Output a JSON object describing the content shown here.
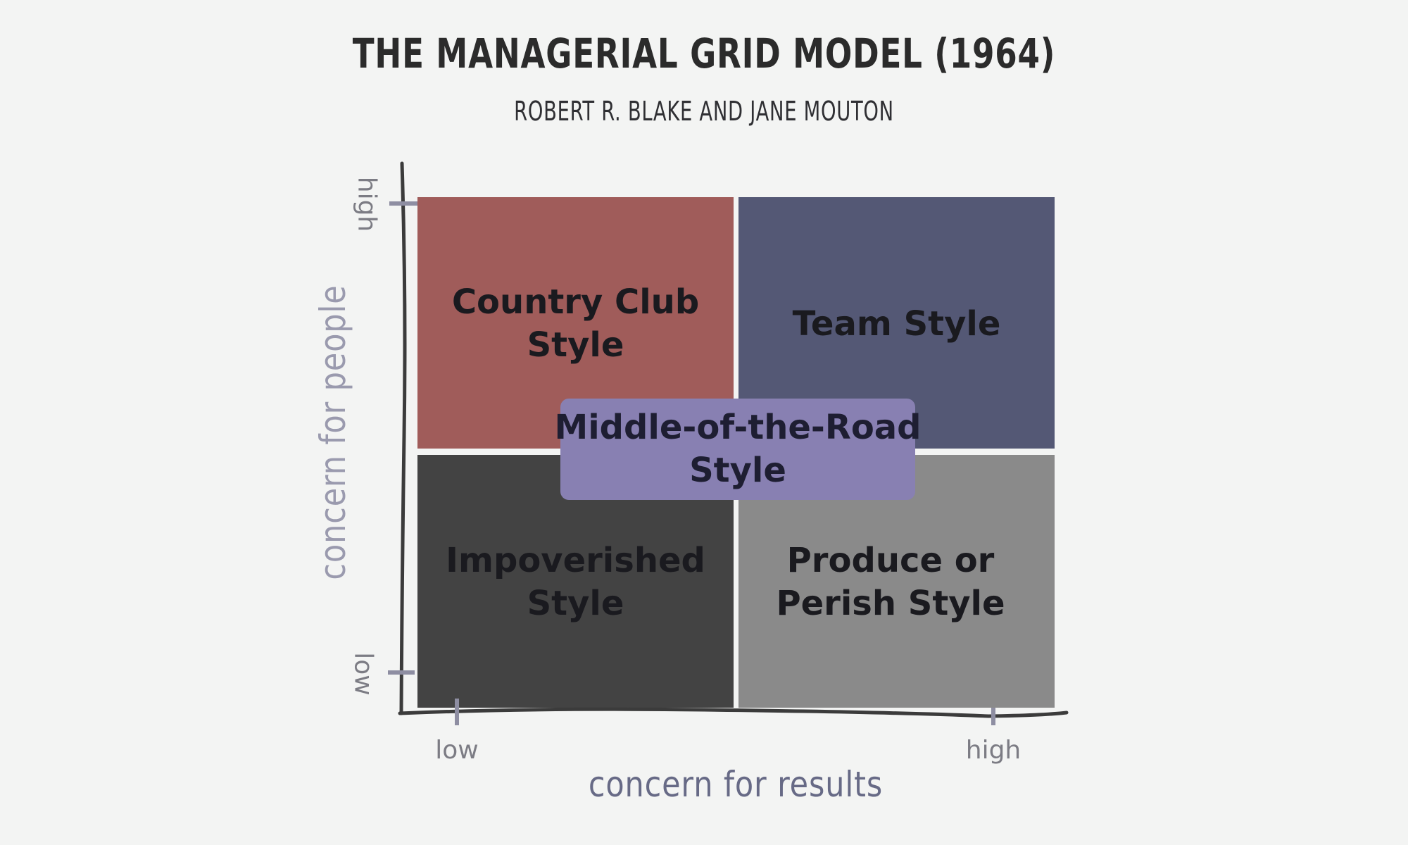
{
  "title": "THE MANAGERIAL GRID MODEL (1964)",
  "subtitle": "ROBERT R. BLAKE AND JANE MOUTON",
  "quadrants": {
    "top_left": {
      "label": "Country Club Style",
      "color": "#a05c5a"
    },
    "top_right": {
      "label": "Team Style",
      "color": "#545875"
    },
    "bottom_left": {
      "label": "Impoverished Style",
      "color": "#434343"
    },
    "bottom_right": {
      "label": "Produce or Perish Style",
      "color": "#8a8a8a"
    }
  },
  "center": {
    "label": "Middle-of-the-Road Style",
    "color": "#8880b2"
  },
  "x_axis": {
    "label": "concern for results",
    "low": "low",
    "high": "high"
  },
  "y_axis": {
    "label": "concern for people",
    "low": "low",
    "high": "high"
  }
}
